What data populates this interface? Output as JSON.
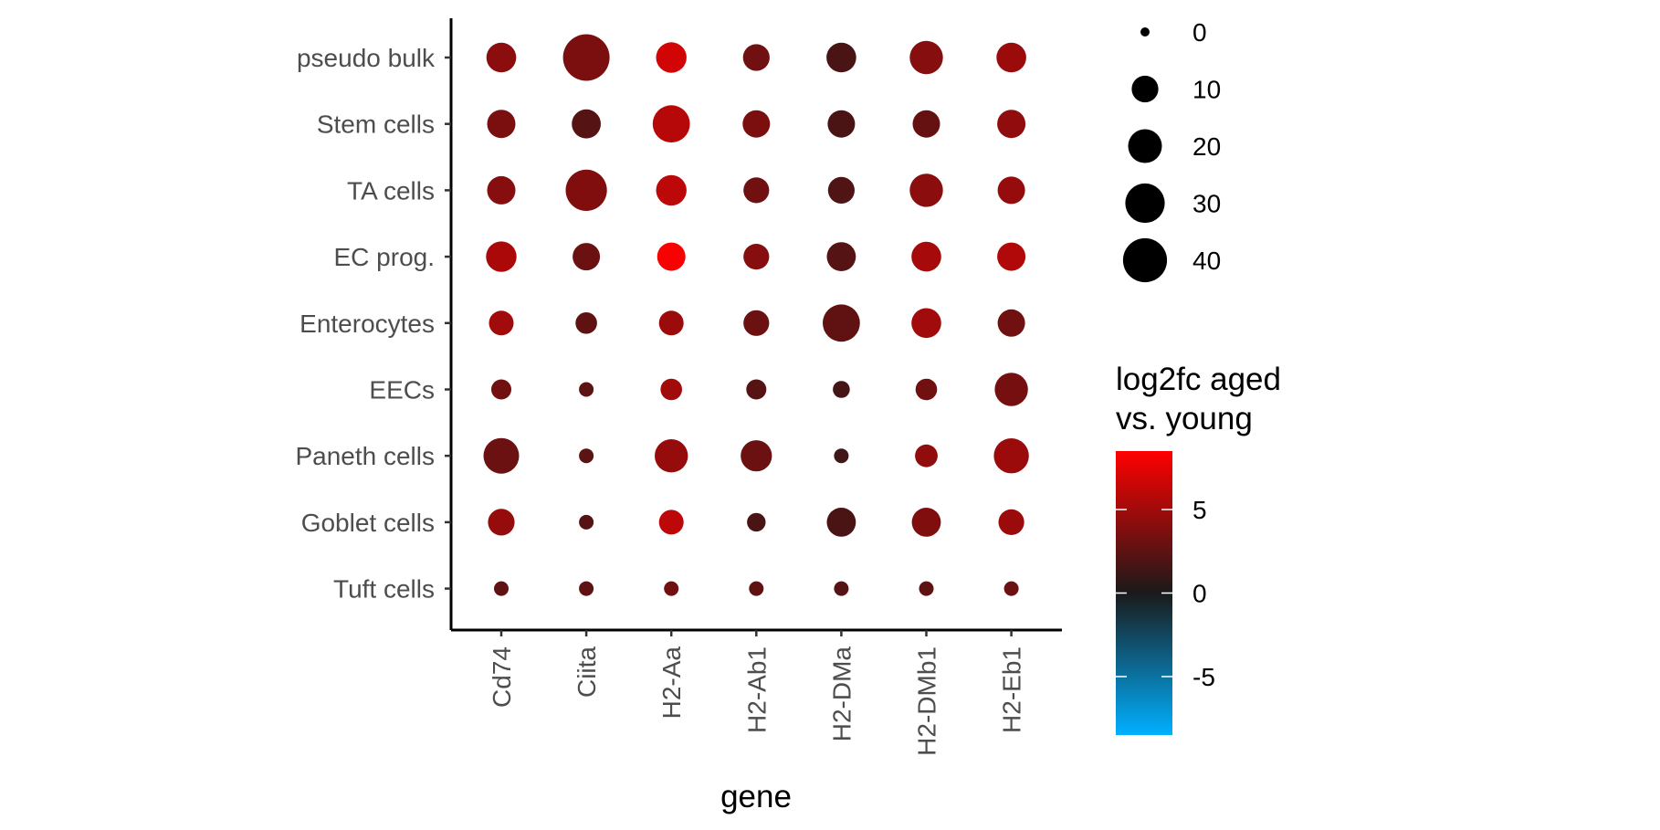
{
  "chart_data": {
    "type": "dotplot",
    "xlabel": "gene",
    "ylabel": "",
    "genes": [
      "Cd74",
      "Ciita",
      "H2-Aa",
      "H2-Ab1",
      "H2-DMa",
      "H2-DMb1",
      "H2-Eb1"
    ],
    "cell_types": [
      "pseudo bulk",
      "Stem cells",
      "TA cells",
      "EC prog.",
      "Enterocytes",
      "EECs",
      "Paneth cells",
      "Goblet cells",
      "Tuft cells"
    ],
    "size_legend": {
      "title": "",
      "breaks": [
        0,
        10,
        20,
        30,
        40
      ]
    },
    "color_legend": {
      "title_lines": [
        "log2fc aged",
        "vs. young"
      ],
      "breaks": [
        5,
        0,
        -5
      ],
      "range": [
        -8.5,
        8.5
      ],
      "low_color": "#00B0FF",
      "mid_color": "#1A1A1A",
      "high_color": "#FF0000"
    },
    "points": [
      {
        "cell": "pseudo bulk",
        "gene": "Cd74",
        "size": 14,
        "log2fc": 4.2
      },
      {
        "cell": "pseudo bulk",
        "gene": "Ciita",
        "size": 46,
        "log2fc": 3.6
      },
      {
        "cell": "pseudo bulk",
        "gene": "H2-Aa",
        "size": 15,
        "log2fc": 6.8
      },
      {
        "cell": "pseudo bulk",
        "gene": "H2-Ab1",
        "size": 10,
        "log2fc": 3.2
      },
      {
        "cell": "pseudo bulk",
        "gene": "H2-DMa",
        "size": 14,
        "log2fc": 1.8
      },
      {
        "cell": "pseudo bulk",
        "gene": "H2-DMb1",
        "size": 19,
        "log2fc": 4.0
      },
      {
        "cell": "pseudo bulk",
        "gene": "H2-Eb1",
        "size": 14,
        "log2fc": 4.8
      },
      {
        "cell": "Stem cells",
        "gene": "Cd74",
        "size": 12,
        "log2fc": 3.6
      },
      {
        "cell": "Stem cells",
        "gene": "Ciita",
        "size": 13,
        "log2fc": 2.2
      },
      {
        "cell": "Stem cells",
        "gene": "H2-Aa",
        "size": 26,
        "log2fc": 5.8
      },
      {
        "cell": "Stem cells",
        "gene": "H2-Ab1",
        "size": 11,
        "log2fc": 3.6
      },
      {
        "cell": "Stem cells",
        "gene": "H2-DMa",
        "size": 11,
        "log2fc": 1.8
      },
      {
        "cell": "Stem cells",
        "gene": "H2-DMb1",
        "size": 11,
        "log2fc": 2.8
      },
      {
        "cell": "Stem cells",
        "gene": "H2-Eb1",
        "size": 12,
        "log2fc": 4.4
      },
      {
        "cell": "TA cells",
        "gene": "Cd74",
        "size": 12,
        "log2fc": 4.0
      },
      {
        "cell": "TA cells",
        "gene": "Ciita",
        "size": 34,
        "log2fc": 3.8
      },
      {
        "cell": "TA cells",
        "gene": "H2-Aa",
        "size": 15,
        "log2fc": 6.0
      },
      {
        "cell": "TA cells",
        "gene": "H2-Ab1",
        "size": 9,
        "log2fc": 3.2
      },
      {
        "cell": "TA cells",
        "gene": "H2-DMa",
        "size": 10,
        "log2fc": 2.0
      },
      {
        "cell": "TA cells",
        "gene": "H2-DMb1",
        "size": 19,
        "log2fc": 4.2
      },
      {
        "cell": "TA cells",
        "gene": "H2-Eb1",
        "size": 11,
        "log2fc": 4.6
      },
      {
        "cell": "EC prog.",
        "gene": "Cd74",
        "size": 15,
        "log2fc": 5.4
      },
      {
        "cell": "EC prog.",
        "gene": "Ciita",
        "size": 11,
        "log2fc": 3.0
      },
      {
        "cell": "EC prog.",
        "gene": "H2-Aa",
        "size": 12,
        "log2fc": 8.2
      },
      {
        "cell": "EC prog.",
        "gene": "H2-Ab1",
        "size": 9,
        "log2fc": 4.0
      },
      {
        "cell": "EC prog.",
        "gene": "H2-DMa",
        "size": 13,
        "log2fc": 2.2
      },
      {
        "cell": "EC prog.",
        "gene": "H2-DMb1",
        "size": 14,
        "log2fc": 5.2
      },
      {
        "cell": "EC prog.",
        "gene": "H2-Eb1",
        "size": 12,
        "log2fc": 5.6
      },
      {
        "cell": "Enterocytes",
        "gene": "Cd74",
        "size": 8,
        "log2fc": 5.0
      },
      {
        "cell": "Enterocytes",
        "gene": "Ciita",
        "size": 5,
        "log2fc": 2.6
      },
      {
        "cell": "Enterocytes",
        "gene": "H2-Aa",
        "size": 8,
        "log2fc": 4.8
      },
      {
        "cell": "Enterocytes",
        "gene": "H2-Ab1",
        "size": 9,
        "log2fc": 3.0
      },
      {
        "cell": "Enterocytes",
        "gene": "H2-DMa",
        "size": 26,
        "log2fc": 2.6
      },
      {
        "cell": "Enterocytes",
        "gene": "H2-DMb1",
        "size": 14,
        "log2fc": 5.0
      },
      {
        "cell": "Enterocytes",
        "gene": "H2-Eb1",
        "size": 11,
        "log2fc": 3.2
      },
      {
        "cell": "EECs",
        "gene": "Cd74",
        "size": 4,
        "log2fc": 3.2
      },
      {
        "cell": "EECs",
        "gene": "Ciita",
        "size": 1,
        "log2fc": 2.4
      },
      {
        "cell": "EECs",
        "gene": "H2-Aa",
        "size": 5,
        "log2fc": 5.0
      },
      {
        "cell": "EECs",
        "gene": "H2-Ab1",
        "size": 4,
        "log2fc": 2.2
      },
      {
        "cell": "EECs",
        "gene": "H2-DMa",
        "size": 2,
        "log2fc": 1.6
      },
      {
        "cell": "EECs",
        "gene": "H2-DMb1",
        "size": 5,
        "log2fc": 3.2
      },
      {
        "cell": "EECs",
        "gene": "H2-Eb1",
        "size": 19,
        "log2fc": 3.4
      },
      {
        "cell": "Paneth cells",
        "gene": "Cd74",
        "size": 23,
        "log2fc": 3.0
      },
      {
        "cell": "Paneth cells",
        "gene": "Ciita",
        "size": 1,
        "log2fc": 2.4
      },
      {
        "cell": "Paneth cells",
        "gene": "H2-Aa",
        "size": 19,
        "log2fc": 4.6
      },
      {
        "cell": "Paneth cells",
        "gene": "H2-Ab1",
        "size": 16,
        "log2fc": 3.0
      },
      {
        "cell": "Paneth cells",
        "gene": "H2-DMa",
        "size": 1,
        "log2fc": 1.4
      },
      {
        "cell": "Paneth cells",
        "gene": "H2-DMb1",
        "size": 6,
        "log2fc": 4.4
      },
      {
        "cell": "Paneth cells",
        "gene": "H2-Eb1",
        "size": 22,
        "log2fc": 4.8
      },
      {
        "cell": "Goblet cells",
        "gene": "Cd74",
        "size": 10,
        "log2fc": 4.6
      },
      {
        "cell": "Goblet cells",
        "gene": "Ciita",
        "size": 1,
        "log2fc": 2.2
      },
      {
        "cell": "Goblet cells",
        "gene": "H2-Aa",
        "size": 8,
        "log2fc": 6.0
      },
      {
        "cell": "Goblet cells",
        "gene": "H2-Ab1",
        "size": 3,
        "log2fc": 1.8
      },
      {
        "cell": "Goblet cells",
        "gene": "H2-DMa",
        "size": 13,
        "log2fc": 1.8
      },
      {
        "cell": "Goblet cells",
        "gene": "H2-DMb1",
        "size": 13,
        "log2fc": 3.8
      },
      {
        "cell": "Goblet cells",
        "gene": "H2-Eb1",
        "size": 9,
        "log2fc": 4.8
      },
      {
        "cell": "Tuft cells",
        "gene": "Cd74",
        "size": 1,
        "log2fc": 2.6
      },
      {
        "cell": "Tuft cells",
        "gene": "Ciita",
        "size": 1,
        "log2fc": 2.6
      },
      {
        "cell": "Tuft cells",
        "gene": "H2-Aa",
        "size": 1,
        "log2fc": 3.2
      },
      {
        "cell": "Tuft cells",
        "gene": "H2-Ab1",
        "size": 1,
        "log2fc": 2.6
      },
      {
        "cell": "Tuft cells",
        "gene": "H2-DMa",
        "size": 1,
        "log2fc": 2.2
      },
      {
        "cell": "Tuft cells",
        "gene": "H2-DMb1",
        "size": 1,
        "log2fc": 2.6
      },
      {
        "cell": "Tuft cells",
        "gene": "H2-Eb1",
        "size": 1,
        "log2fc": 3.0
      }
    ]
  }
}
